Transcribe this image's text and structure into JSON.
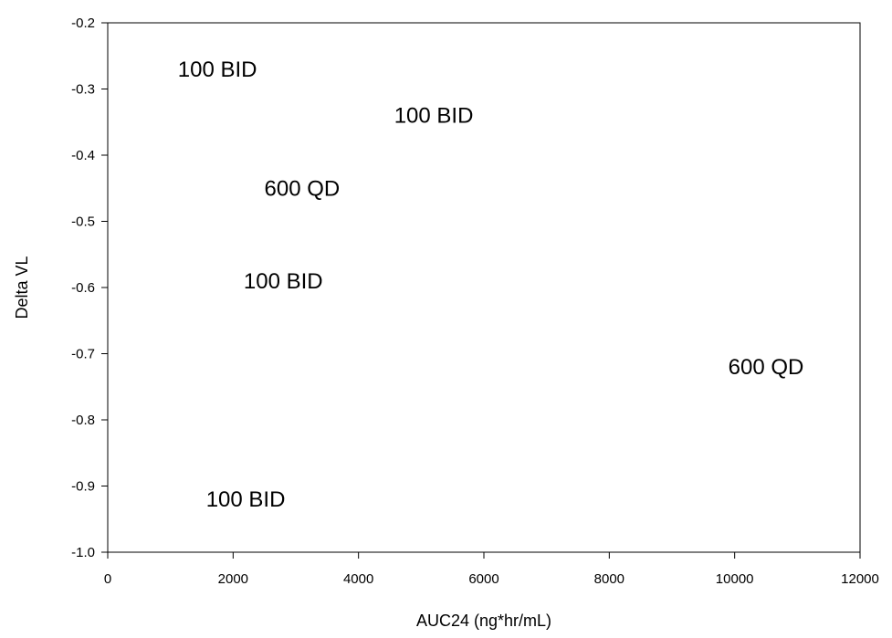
{
  "chart_data": {
    "type": "scatter",
    "title": "",
    "xlabel": "AUC24 (ng*hr/mL)",
    "ylabel": "Delta VL",
    "xlim": [
      0,
      12000
    ],
    "ylim": [
      -1.0,
      -0.2
    ],
    "xticks": [
      0,
      2000,
      4000,
      6000,
      8000,
      10000,
      12000
    ],
    "yticks": [
      -1.0,
      -0.9,
      -0.8,
      -0.7,
      -0.6,
      -0.5,
      -0.4,
      -0.3,
      -0.2
    ],
    "ytick_labels": [
      "-1.0",
      "-0.9",
      "-0.8",
      "-0.7",
      "-0.6",
      "-0.5",
      "-0.4",
      "-0.3",
      "-0.2"
    ],
    "grid": false,
    "points": [
      {
        "x": 1750,
        "y": -0.27,
        "label": "100 BID"
      },
      {
        "x": 5200,
        "y": -0.34,
        "label": "100 BID"
      },
      {
        "x": 3100,
        "y": -0.45,
        "label": "600 QD"
      },
      {
        "x": 2800,
        "y": -0.59,
        "label": "100 BID"
      },
      {
        "x": 10500,
        "y": -0.72,
        "label": "600 QD"
      },
      {
        "x": 2200,
        "y": -0.92,
        "label": "100 BID"
      }
    ]
  }
}
